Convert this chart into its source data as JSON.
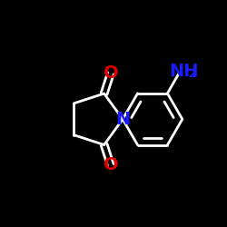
{
  "background_color": "#000000",
  "bond_color": "#ffffff",
  "O_color": "#dd0000",
  "N_color": "#1a1aff",
  "bond_width": 2.0,
  "font_size_label": 14,
  "font_size_sub": 9,
  "figsize": [
    2.5,
    2.5
  ],
  "dpi": 100,
  "xlim": [
    -1.6,
    1.6
  ],
  "ylim": [
    -1.6,
    1.6
  ]
}
